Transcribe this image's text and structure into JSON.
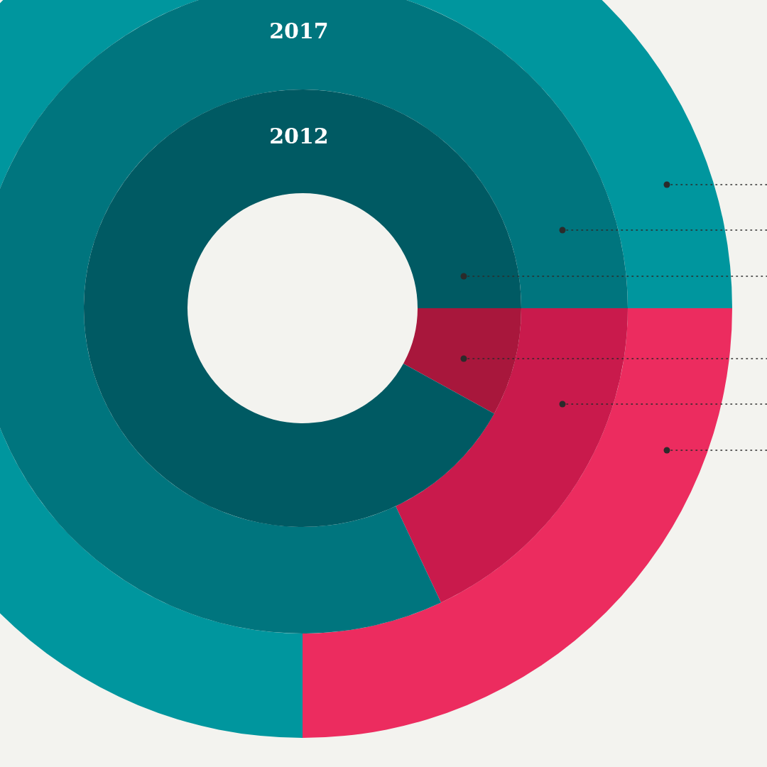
{
  "chart_data": [
    {
      "type": "donut",
      "title": "2012",
      "categories": [
        null,
        null
      ],
      "values": [
        8,
        92
      ],
      "colors": [
        "#a8173c",
        "#005a63"
      ]
    },
    {
      "type": "donut",
      "title": "2017",
      "categories": [
        null,
        null
      ],
      "values": [
        18,
        82
      ],
      "colors": [
        "#c91a4c",
        "#00757e"
      ]
    },
    {
      "type": "donut",
      "categories": [
        null,
        null
      ],
      "values": [
        25,
        75
      ],
      "colors": [
        "#ec2c5f",
        "#00969e"
      ]
    }
  ]
}
